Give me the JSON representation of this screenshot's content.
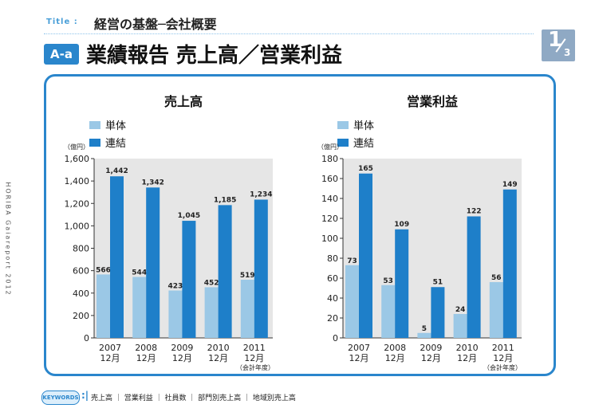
{
  "header": {
    "title_label": "Title :",
    "title_text": "経営の基盤─会社概要",
    "section_badge": "A-a",
    "section_title": "業績報告  売上高／営業利益",
    "page_current": "1",
    "page_total": "3"
  },
  "side_text": "HORIBA Gaiareport 2012",
  "footer": {
    "keywords_label": "KEYWORDS",
    "keywords": "売上高 ｜ 営業利益 ｜ 社員数 ｜ 部門別売上高 ｜ 地域別売上高"
  },
  "colors": {
    "accent": "#2a86cc",
    "single": "#9bc8e6",
    "consolidated": "#1e7fc9",
    "plot_bg": "#e6e6e6"
  },
  "chart_data": [
    {
      "type": "bar",
      "title": "売上高",
      "unit_label": "（億円）",
      "categories": [
        "2007\n12月",
        "2008\n12月",
        "2009\n12月",
        "2010\n12月",
        "2011\n12月"
      ],
      "category_note": "（会計年度）",
      "ylim": [
        0,
        1600
      ],
      "yticks": [
        0,
        200,
        400,
        600,
        800,
        1000,
        1200,
        1400,
        1600
      ],
      "ytick_labels": [
        "0",
        "200",
        "400",
        "600",
        "800",
        "1,000",
        "1,200",
        "1,400",
        "1,600"
      ],
      "legend_position": "top-left",
      "series": [
        {
          "name": "単体",
          "values": [
            566,
            544,
            423,
            452,
            519
          ],
          "labels": [
            "566",
            "544",
            "423",
            "452",
            "519"
          ]
        },
        {
          "name": "連結",
          "values": [
            1442,
            1342,
            1045,
            1185,
            1234
          ],
          "labels": [
            "1,442",
            "1,342",
            "1,045",
            "1,185",
            "1,234"
          ]
        }
      ]
    },
    {
      "type": "bar",
      "title": "営業利益",
      "unit_label": "（億円）",
      "categories": [
        "2007\n12月",
        "2008\n12月",
        "2009\n12月",
        "2010\n12月",
        "2011\n12月"
      ],
      "category_note": "（会計年度）",
      "ylim": [
        0,
        180
      ],
      "yticks": [
        0,
        20,
        40,
        60,
        80,
        100,
        120,
        140,
        160,
        180
      ],
      "ytick_labels": [
        "0",
        "20",
        "40",
        "60",
        "80",
        "100",
        "120",
        "140",
        "160",
        "180"
      ],
      "legend_position": "top-left",
      "series": [
        {
          "name": "単体",
          "values": [
            73,
            53,
            5,
            24,
            56
          ],
          "labels": [
            "73",
            "53",
            "5",
            "24",
            "56"
          ]
        },
        {
          "name": "連結",
          "values": [
            165,
            109,
            51,
            122,
            149
          ],
          "labels": [
            "165",
            "109",
            "51",
            "122",
            "149"
          ]
        }
      ]
    }
  ]
}
